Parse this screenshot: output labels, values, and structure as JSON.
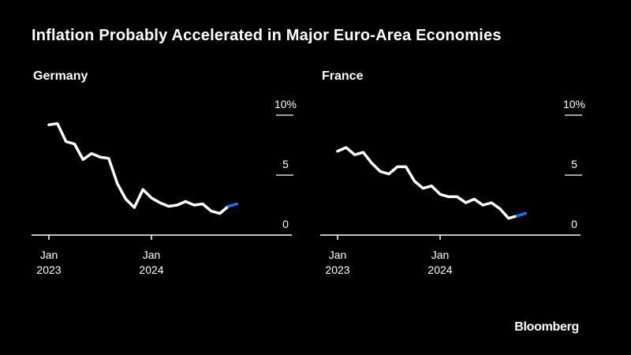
{
  "title": "Inflation Probably Accelerated in Major Euro-Area Economies",
  "brand": "Bloomberg",
  "colors": {
    "background": "#000000",
    "line": "#ffffff",
    "forecast": "#1f6fff",
    "axis": "#ffffff"
  },
  "chart_data": [
    {
      "type": "line",
      "title": "Germany",
      "x_tick_labels": [
        {
          "month": "Jan",
          "year": "2023",
          "index": 0
        },
        {
          "month": "Jan",
          "year": "2024",
          "index": 12
        }
      ],
      "y_ticks": [
        {
          "label": "10%",
          "value": 10
        },
        {
          "label": "5",
          "value": 5
        },
        {
          "label": "0",
          "value": 0
        }
      ],
      "ylim": [
        0,
        10
      ],
      "x_range": [
        -2,
        26
      ],
      "grid": false,
      "series": [
        {
          "name": "Inflation",
          "style": "actual",
          "x_start": 0,
          "values": [
            9.2,
            9.3,
            7.8,
            7.6,
            6.3,
            6.8,
            6.5,
            6.4,
            4.3,
            3.0,
            2.3,
            3.8,
            3.1,
            2.7,
            2.4,
            2.5,
            2.8,
            2.5,
            2.6,
            2.0,
            1.8,
            2.4
          ]
        },
        {
          "name": "Forecast",
          "style": "forecast",
          "x_start": 21,
          "values": [
            2.4,
            2.6
          ]
        }
      ]
    },
    {
      "type": "line",
      "title": "France",
      "x_tick_labels": [
        {
          "month": "Jan",
          "year": "2023",
          "index": 0
        },
        {
          "month": "Jan",
          "year": "2024",
          "index": 12
        }
      ],
      "y_ticks": [
        {
          "label": "10%",
          "value": 10
        },
        {
          "label": "5",
          "value": 5
        },
        {
          "label": "0",
          "value": 0
        }
      ],
      "ylim": [
        0,
        10
      ],
      "x_range": [
        -2,
        26
      ],
      "grid": false,
      "series": [
        {
          "name": "Inflation",
          "style": "actual",
          "x_start": 0,
          "values": [
            7.0,
            7.3,
            6.7,
            6.9,
            6.0,
            5.3,
            5.1,
            5.7,
            5.7,
            4.5,
            3.9,
            4.1,
            3.4,
            3.2,
            3.2,
            2.7,
            3.0,
            2.5,
            2.7,
            2.2,
            1.4,
            1.6
          ]
        },
        {
          "name": "Forecast",
          "style": "forecast",
          "x_start": 21,
          "values": [
            1.6,
            1.8
          ]
        }
      ]
    }
  ]
}
